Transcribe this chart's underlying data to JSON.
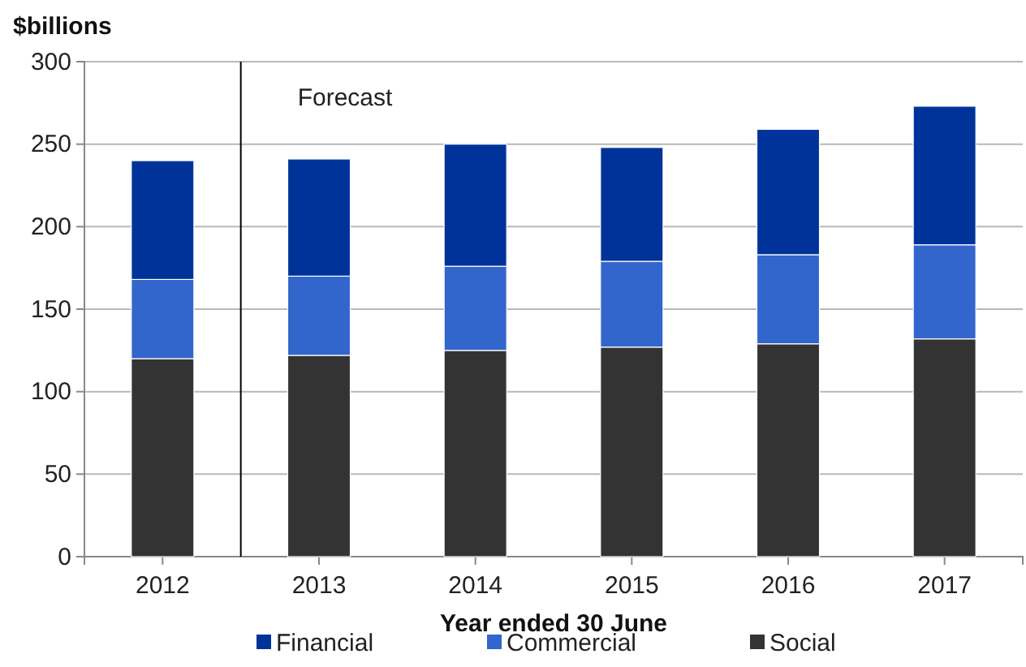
{
  "chart_data": {
    "type": "bar",
    "stacked": true,
    "ylabel": "$billions",
    "xlabel": "Year ended 30 June",
    "x": [
      2012,
      2013,
      2014,
      2015,
      2016,
      2017
    ],
    "xlim": [
      2011.5,
      2017.5
    ],
    "xticks": [
      2012,
      2013,
      2014,
      2015,
      2016,
      2017
    ],
    "ylim": [
      0,
      300
    ],
    "yticks": [
      0,
      50,
      100,
      150,
      200,
      250,
      300
    ],
    "grid": "y",
    "legend": "bottom",
    "series": [
      {
        "name": "Social",
        "color": "#333333",
        "values": [
          120,
          122,
          125,
          127,
          129,
          132
        ]
      },
      {
        "name": "Commercial",
        "color": "#3366cc",
        "values": [
          48,
          48,
          51,
          52,
          54,
          57
        ]
      },
      {
        "name": "Financial",
        "color": "#003399",
        "values": [
          72,
          71,
          74,
          69,
          76,
          84
        ]
      }
    ],
    "ref_lines": [
      {
        "axis": "x",
        "value": 2012.5,
        "label": "Forecast",
        "color": "#000000"
      }
    ]
  }
}
